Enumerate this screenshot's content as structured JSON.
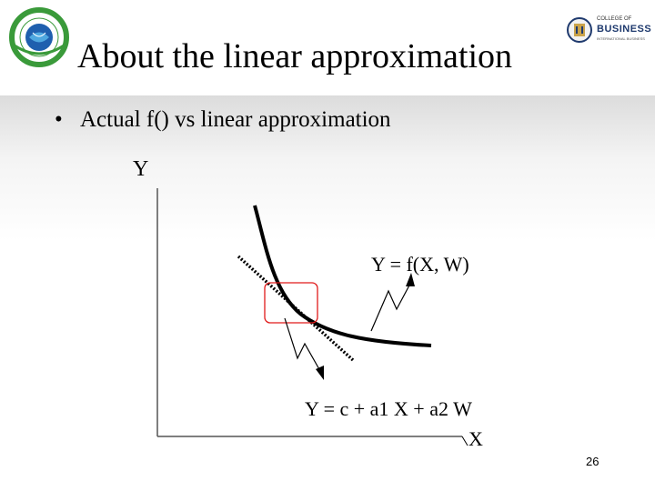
{
  "slide": {
    "title": "About the linear approximation",
    "bullet": "Actual f() vs linear approximation",
    "page_number": "26"
  },
  "diagram": {
    "y_axis_label": "Y",
    "x_axis_label": "X",
    "curve_label": "Y = f(X, W)",
    "linear_label": "Y = c + a1 X  + a2 W"
  },
  "logos": {
    "right_top": "COLLEGE OF",
    "right_main": "BUSINESS",
    "right_sub": "INTERNATIONAL BUSINESS"
  },
  "colors": {
    "title_band": "#ffffff",
    "highlight_box": "#e01a1a",
    "curve": "#000000",
    "logo_green": "#3a9a3a",
    "logo_blue": "#1f5fae"
  }
}
